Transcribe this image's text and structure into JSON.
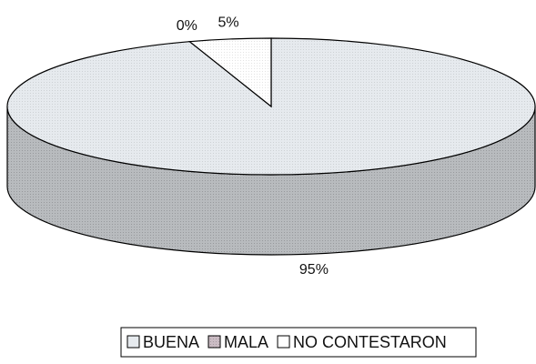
{
  "chart_data": {
    "type": "pie3d",
    "categories": [
      "BUENA",
      "MALA",
      "NO CONTESTARON"
    ],
    "values": [
      95,
      0,
      5
    ],
    "value_labels": [
      "95%",
      "0%",
      "5%"
    ],
    "colors": [
      "#e6eaee",
      "#cbbcc4",
      "#ffffff"
    ],
    "legend": "bottom"
  }
}
